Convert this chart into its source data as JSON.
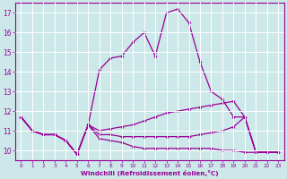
{
  "xlabel": "Windchill (Refroidissement éolien,°C)",
  "background_color": "#cce8e8",
  "line_color": "#990099",
  "grid_color": "#ffffff",
  "xlim": [
    -0.5,
    23.5
  ],
  "ylim": [
    9.5,
    17.5
  ],
  "xticks": [
    0,
    1,
    2,
    3,
    4,
    5,
    6,
    7,
    8,
    9,
    10,
    11,
    12,
    13,
    14,
    15,
    16,
    17,
    18,
    19,
    20,
    21,
    22,
    23
  ],
  "yticks": [
    10,
    11,
    12,
    13,
    14,
    15,
    16,
    17
  ],
  "series": [
    {
      "x": [
        0,
        1,
        2,
        3,
        4,
        5,
        6,
        7,
        8,
        9,
        10,
        11,
        12,
        13,
        14,
        15,
        16,
        17,
        18,
        19,
        20,
        21,
        22,
        23
      ],
      "y": [
        11.7,
        11.0,
        10.8,
        10.8,
        10.5,
        9.8,
        11.3,
        14.1,
        14.7,
        14.8,
        15.5,
        16.0,
        14.8,
        17.0,
        17.2,
        16.5,
        14.5,
        13.0,
        12.6,
        11.7,
        11.7,
        9.9,
        9.9,
        9.9
      ]
    },
    {
      "x": [
        0,
        1,
        2,
        3,
        4,
        5,
        6,
        7,
        8,
        9,
        10,
        11,
        12,
        13,
        14,
        15,
        16,
        17,
        18,
        19,
        20,
        21,
        22,
        23
      ],
      "y": [
        11.7,
        11.0,
        10.8,
        10.8,
        10.5,
        9.8,
        11.3,
        11.0,
        11.1,
        11.2,
        11.3,
        11.5,
        11.7,
        11.9,
        12.0,
        12.1,
        12.2,
        12.3,
        12.4,
        12.5,
        11.7,
        9.9,
        9.9,
        9.9
      ]
    },
    {
      "x": [
        0,
        1,
        2,
        3,
        4,
        5,
        6,
        7,
        8,
        9,
        10,
        11,
        12,
        13,
        14,
        15,
        16,
        17,
        18,
        19,
        20,
        21,
        22,
        23
      ],
      "y": [
        11.7,
        11.0,
        10.8,
        10.8,
        10.5,
        9.8,
        11.3,
        10.8,
        10.8,
        10.7,
        10.7,
        10.7,
        10.7,
        10.7,
        10.7,
        10.7,
        10.8,
        10.9,
        11.0,
        11.2,
        11.7,
        9.9,
        9.9,
        9.9
      ]
    },
    {
      "x": [
        0,
        1,
        2,
        3,
        4,
        5,
        6,
        7,
        8,
        9,
        10,
        11,
        12,
        13,
        14,
        15,
        16,
        17,
        18,
        19,
        20,
        21,
        22,
        23
      ],
      "y": [
        11.7,
        11.0,
        10.8,
        10.8,
        10.5,
        9.8,
        11.3,
        10.6,
        10.5,
        10.4,
        10.2,
        10.1,
        10.1,
        10.1,
        10.1,
        10.1,
        10.1,
        10.1,
        10.0,
        10.0,
        9.9,
        9.9,
        9.9,
        9.9
      ]
    }
  ]
}
